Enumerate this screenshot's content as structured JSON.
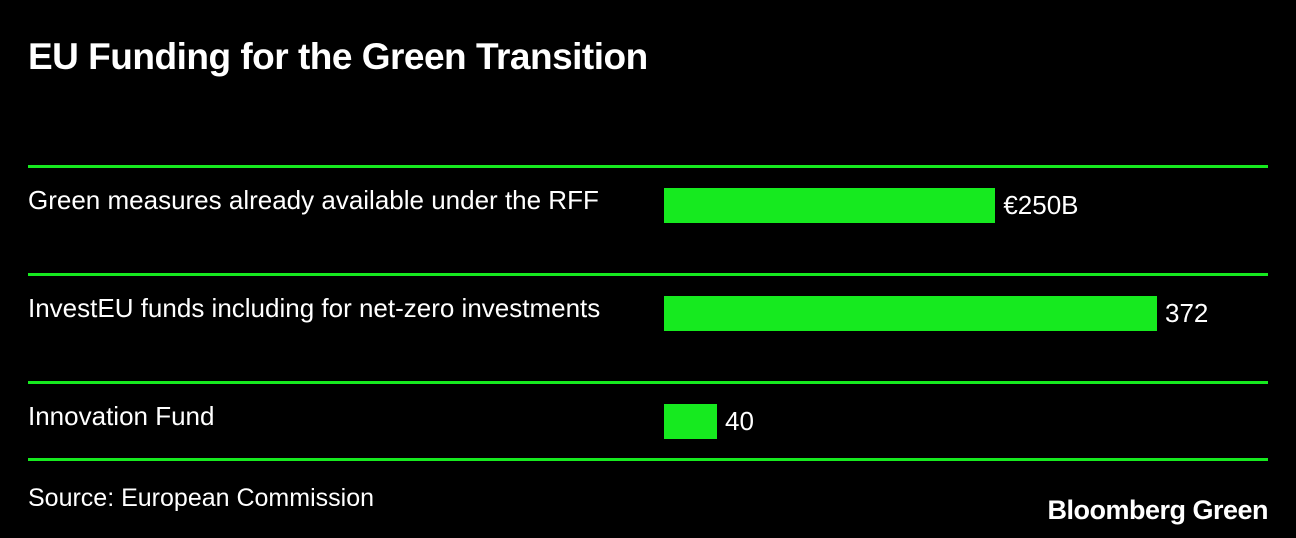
{
  "chart_data": {
    "type": "bar",
    "title": "EU Funding for the Green Transition",
    "categories": [
      "Green measures already available under the RFF",
      "InvestEU funds including for net-zero investments",
      "Innovation Fund"
    ],
    "values": [
      250,
      372,
      40
    ],
    "value_labels": [
      "€250B",
      "372",
      "40"
    ],
    "color": "#16ea1f",
    "source": "Source: European Commission",
    "brand": "Bloomberg Green"
  }
}
